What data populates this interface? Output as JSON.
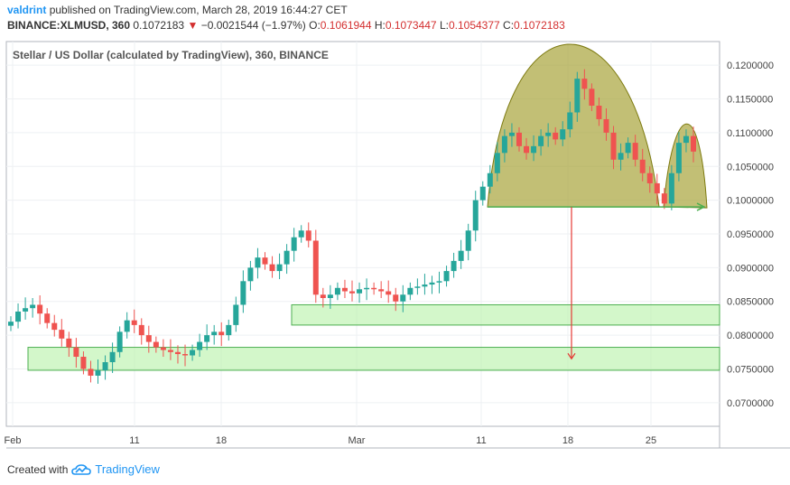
{
  "header": {
    "user": "valdrint",
    "published_text": "published on TradingView.com, March 28, 2019 16:44:27 CET",
    "symbol": "BINANCE:XLMUSD, 360",
    "last": "0.1072183",
    "change_arrow": "▼",
    "change": "−0.0021544 (−1.97%)",
    "o_label": "O:",
    "o_value": "0.1061944",
    "h_label": "H:",
    "h_value": "0.1073447",
    "l_label": "L:",
    "l_value": "0.1054377",
    "c_label": "C:",
    "c_value": "0.1072183"
  },
  "footer": {
    "created_with": "Created with",
    "brand": "TradingView",
    "logo_icon": "tradingview-cloud-icon"
  },
  "colors": {
    "up": "#26a69a",
    "down": "#ef5350",
    "zone_fill": "#b6f2a6",
    "zone_stroke": "#4caf50",
    "pattern_fill": "#a8a43a",
    "pattern_stroke": "#7d7a10",
    "target_arrow": "#e53935",
    "neckline": "#4caf50",
    "brand": "#2196f3"
  },
  "chart_data": {
    "type": "candlestick",
    "title": "Stellar / US Dollar (calculated by TradingView), 360, BINANCE",
    "x_tick_labels": [
      "Feb",
      "11",
      "18",
      "Mar",
      "11",
      "18",
      "25"
    ],
    "y_tick_labels": [
      "0.0700000",
      "0.0750000",
      "0.0800000",
      "0.0850000",
      "0.0900000",
      "0.0950000",
      "0.1000000",
      "0.1050000",
      "0.1100000",
      "0.1150000",
      "0.1200000"
    ],
    "ylim": [
      0.0665,
      0.1235
    ],
    "grid": true,
    "closes": [
      0.082,
      0.0835,
      0.084,
      0.0845,
      0.0832,
      0.0818,
      0.0808,
      0.0795,
      0.0782,
      0.0768,
      0.075,
      0.074,
      0.0748,
      0.076,
      0.0775,
      0.0805,
      0.0822,
      0.0815,
      0.08,
      0.079,
      0.0782,
      0.0778,
      0.0775,
      0.0772,
      0.077,
      0.0778,
      0.079,
      0.08,
      0.0805,
      0.08,
      0.0815,
      0.0845,
      0.088,
      0.09,
      0.0915,
      0.0905,
      0.0895,
      0.0905,
      0.0925,
      0.0945,
      0.0955,
      0.094,
      0.086,
      0.0855,
      0.086,
      0.087,
      0.0865,
      0.0862,
      0.0868,
      0.087,
      0.0868,
      0.0865,
      0.086,
      0.085,
      0.086,
      0.087,
      0.0872,
      0.0875,
      0.0878,
      0.088,
      0.0895,
      0.091,
      0.0925,
      0.0955,
      0.1,
      0.102,
      0.104,
      0.107,
      0.1095,
      0.11,
      0.108,
      0.107,
      0.108,
      0.1095,
      0.11,
      0.109,
      0.1105,
      0.113,
      0.118,
      0.1165,
      0.114,
      0.112,
      0.11,
      0.106,
      0.107,
      0.1085,
      0.106,
      0.104,
      0.1025,
      0.101,
      0.0995,
      0.104,
      0.1085,
      0.1095,
      0.1072
    ],
    "annotations": {
      "pattern": "head-and-shoulders",
      "neckline": 0.099,
      "target": 0.0765,
      "support_zones": [
        [
          0.0815,
          0.0845
        ],
        [
          0.0748,
          0.0782
        ]
      ]
    }
  }
}
